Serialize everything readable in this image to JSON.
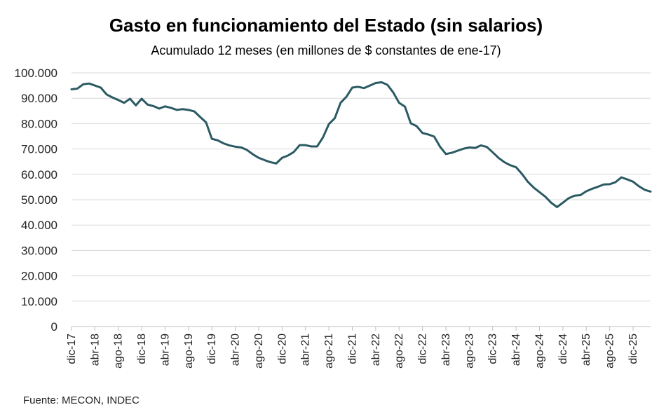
{
  "chart_data": {
    "type": "line",
    "title": "Gasto en funcionamiento del Estado (sin salarios)",
    "subtitle": "Acumulado 12 meses (en millones de $ constantes de ene-17)",
    "source": "Fuente: MECON, INDEC",
    "xlabel": "",
    "ylabel": "",
    "ylim": [
      0,
      100000
    ],
    "yticks": [
      "0",
      "10.000",
      "20.000",
      "30.000",
      "40.000",
      "50.000",
      "60.000",
      "70.000",
      "80.000",
      "90.000",
      "100.000"
    ],
    "xtick_labels": [
      "dic-17",
      "abr-18",
      "ago-18",
      "dic-18",
      "abr-19",
      "ago-19",
      "dic-19",
      "abr-20",
      "ago-20",
      "dic-20",
      "abr-21",
      "ago-21",
      "dic-21",
      "abr-22",
      "ago-22",
      "dic-22",
      "abr-23",
      "ago-23",
      "dic-23",
      "abr-24",
      "ago-24",
      "dic-24",
      "abr-25",
      "ago-25",
      "dic-25"
    ],
    "grid": true,
    "legend": "none",
    "line_color": "#2b5a63",
    "series": [
      {
        "name": "",
        "x_start": "dic-17",
        "x_end": "mar-26",
        "values": [
          93500,
          93800,
          95500,
          95800,
          95000,
          94200,
          91500,
          90300,
          89300,
          88200,
          89800,
          87200,
          89800,
          87500,
          86900,
          85900,
          86800,
          86200,
          85400,
          85700,
          85400,
          84800,
          82600,
          80500,
          74000,
          73400,
          72200,
          71400,
          70900,
          70600,
          69600,
          67900,
          66500,
          65600,
          64800,
          64300,
          66500,
          67400,
          68800,
          71500,
          71500,
          71000,
          71000,
          74600,
          79800,
          82100,
          88200,
          90600,
          94200,
          94500,
          94000,
          95000,
          96000,
          96300,
          95300,
          92300,
          88200,
          86700,
          80100,
          79000,
          76300,
          75700,
          74900,
          70900,
          68000,
          68500,
          69300,
          70100,
          70600,
          70400,
          71400,
          70800,
          68700,
          66500,
          64800,
          63600,
          62800,
          60200,
          57100,
          54800,
          53000,
          51200,
          48800,
          47100,
          48800,
          50600,
          51600,
          51800,
          53300,
          54300,
          55100,
          56000,
          56100,
          56900,
          58800,
          58000,
          57100,
          55300,
          53900,
          53200
        ]
      }
    ]
  }
}
